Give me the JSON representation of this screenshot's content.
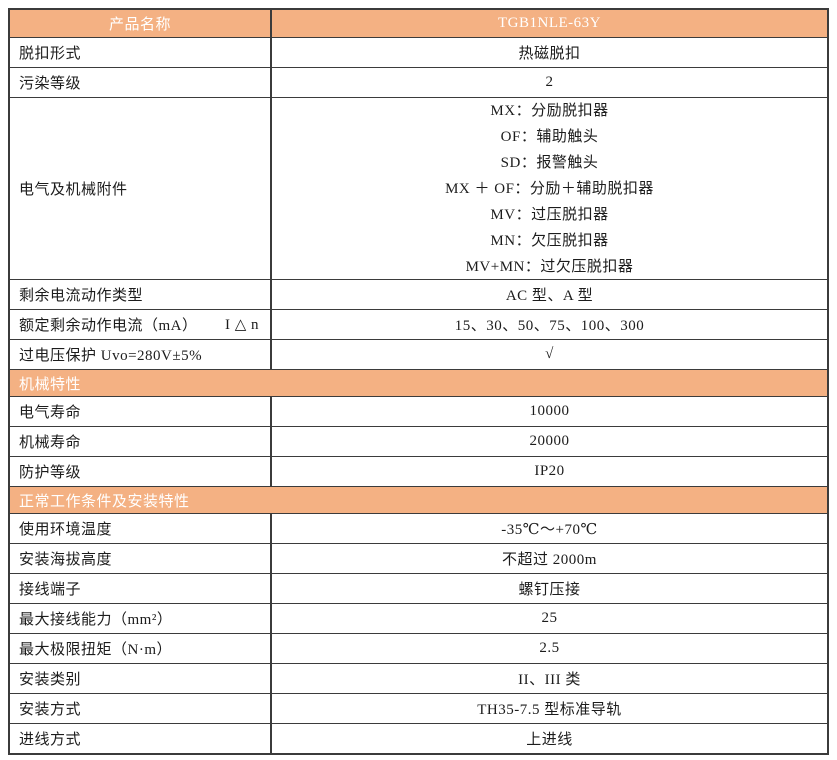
{
  "colors": {
    "accent_orange": "#f4b183",
    "border_dark": "#3b3b3b",
    "text_dark": "#1c1c1c",
    "text_white": "#ffffff"
  },
  "table": {
    "product_header": {
      "label": "产品名称",
      "value": "TGB1NLE-63Y"
    },
    "rows_top": [
      {
        "label": "脱扣形式",
        "value": "热磁脱扣"
      },
      {
        "label": "污染等级",
        "value": "2"
      },
      {
        "label": "电气及机械附件",
        "value": "MX：分励脱扣器\nOF：辅助触头\nSD：报警触头\nMX ＋ OF：分励＋辅助脱扣器\nMV：过压脱扣器\nMN：欠压脱扣器\nMV+MN：过欠压脱扣器"
      },
      {
        "label": "剩余电流动作类型",
        "value": "AC 型、A 型"
      },
      {
        "label": "额定剩余动作电流（mA）",
        "label_suffix": "I △ n",
        "value": "15、30、50、75、100、300"
      },
      {
        "label": "过电压保护 Uvo=280V±5%",
        "value": "√"
      }
    ],
    "section_mechanical": {
      "title": "机械特性"
    },
    "rows_mechanical": [
      {
        "label": "电气寿命",
        "value": "10000"
      },
      {
        "label": "机械寿命",
        "value": "20000"
      },
      {
        "label": "防护等级",
        "value": "IP20"
      }
    ],
    "section_installation": {
      "title": "正常工作条件及安装特性"
    },
    "rows_installation": [
      {
        "label": "使用环境温度",
        "value": "-35℃～+70℃"
      },
      {
        "label": "安装海拔高度",
        "value": "不超过 2000m"
      },
      {
        "label": "接线端子",
        "value": "螺钉压接"
      },
      {
        "label": "最大接线能力（mm²）",
        "value": "25"
      },
      {
        "label": "最大极限扭矩（N·m）",
        "value": "2.5"
      },
      {
        "label": "安装类别",
        "value": "II、III 类"
      },
      {
        "label": "安装方式",
        "value": "TH35-7.5 型标准导轨"
      },
      {
        "label": "进线方式",
        "value": "上进线"
      }
    ]
  }
}
